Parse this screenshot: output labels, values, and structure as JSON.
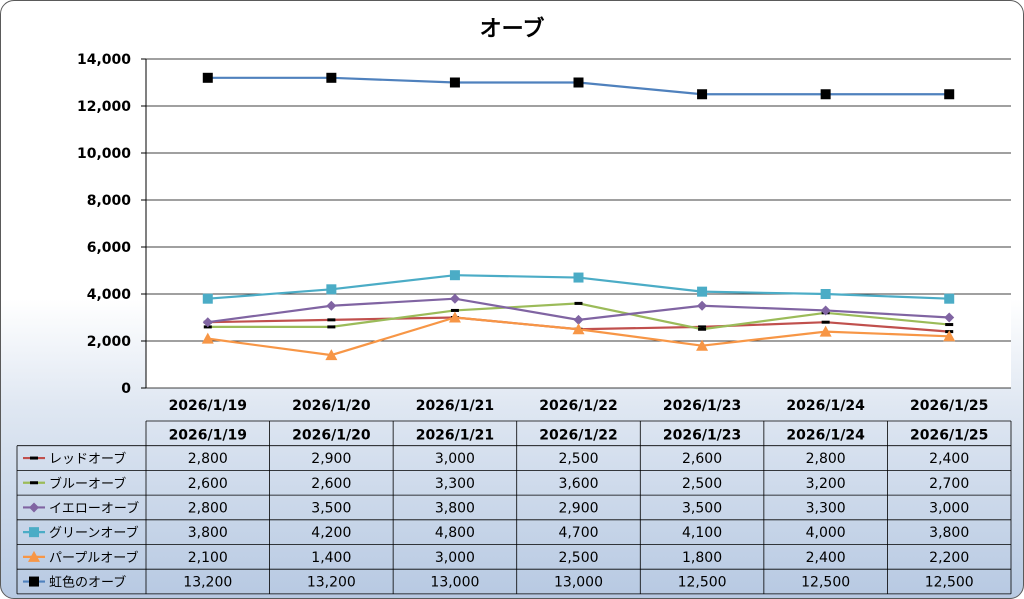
{
  "chart_data": {
    "type": "line",
    "title": "オーブ",
    "categories": [
      "2026/1/19",
      "2026/1/20",
      "2026/1/21",
      "2026/1/22",
      "2026/1/23",
      "2026/1/24",
      "2026/1/25"
    ],
    "ylim": [
      0,
      14000
    ],
    "yticks": [
      "14,000",
      "12,000",
      "10,000",
      "8,000",
      "6,000",
      "4,000",
      "2,000",
      "0"
    ],
    "grid": true,
    "legend": "data-table",
    "series": [
      {
        "name": "レッドオーブ",
        "color": "#c0504d",
        "marker": "dash",
        "values": [
          2800,
          2900,
          3000,
          2500,
          2600,
          2800,
          2400
        ],
        "labels": [
          "2,800",
          "2,900",
          "3,000",
          "2,500",
          "2,600",
          "2,800",
          "2,400"
        ]
      },
      {
        "name": "ブルーオーブ",
        "color": "#9bbb59",
        "marker": "dash",
        "values": [
          2600,
          2600,
          3300,
          3600,
          2500,
          3200,
          2700
        ],
        "labels": [
          "2,600",
          "2,600",
          "3,300",
          "3,600",
          "2,500",
          "3,200",
          "2,700"
        ]
      },
      {
        "name": "イエローオーブ",
        "color": "#8064a2",
        "marker": "diamond",
        "values": [
          2800,
          3500,
          3800,
          2900,
          3500,
          3300,
          3000
        ],
        "labels": [
          "2,800",
          "3,500",
          "3,800",
          "2,900",
          "3,500",
          "3,300",
          "3,000"
        ]
      },
      {
        "name": "グリーンオーブ",
        "color": "#4bacc6",
        "marker": "square",
        "values": [
          3800,
          4200,
          4800,
          4700,
          4100,
          4000,
          3800
        ],
        "labels": [
          "3,800",
          "4,200",
          "4,800",
          "4,700",
          "4,100",
          "4,000",
          "3,800"
        ]
      },
      {
        "name": "パープルオーブ",
        "color": "#f79646",
        "marker": "triangle",
        "values": [
          2100,
          1400,
          3000,
          2500,
          1800,
          2400,
          2200
        ],
        "labels": [
          "2,100",
          "1,400",
          "3,000",
          "2,500",
          "1,800",
          "2,400",
          "2,200"
        ]
      },
      {
        "name": "虹色のオーブ",
        "color": "#4f81bd",
        "marker": "square-black",
        "values": [
          13200,
          13200,
          13000,
          13000,
          12500,
          12500,
          12500
        ],
        "labels": [
          "13,200",
          "13,200",
          "13,000",
          "13,000",
          "12,500",
          "12,500",
          "12,500"
        ]
      }
    ]
  }
}
